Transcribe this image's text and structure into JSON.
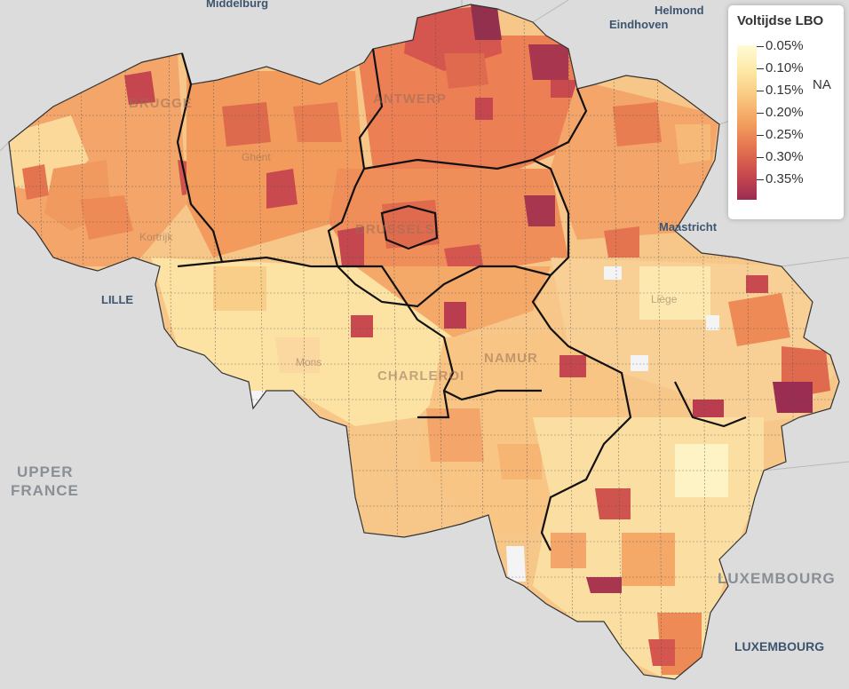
{
  "legend": {
    "title": "Voltijdse LBO",
    "ticks": [
      "0.05%",
      "0.10%",
      "0.15%",
      "0.20%",
      "0.25%",
      "0.30%",
      "0.35%"
    ],
    "na_label": "NA",
    "gradient_colors": [
      "#fffbd6",
      "#fde9a6",
      "#f9c77f",
      "#f3a05f",
      "#e4734f",
      "#c94a4e",
      "#9b2d52"
    ]
  },
  "places": {
    "middelburg": "Middelburg",
    "helmond": "Helmond",
    "eindhoven": "Eindhoven",
    "brugge": "BRUGGE",
    "antwerpen": "ANTWERP",
    "gent": "Ghent",
    "kortrijk": "Kortrijk",
    "brussels": "BRUSSELS",
    "maastricht": "Maastricht",
    "liege": "Liège",
    "lille": "LILLE",
    "mons": "Mons",
    "charleroi": "CHARLEROI",
    "namur": "NAMUR",
    "upper_france_1": "UPPER",
    "upper_france_2": "FRANCE",
    "luxembourg_country": "LUXEMBOURG",
    "luxembourg_city": "LUXEMBOURG"
  },
  "colors": {
    "background": "#dcdcdc",
    "na_fill": "#f4f4f4"
  }
}
